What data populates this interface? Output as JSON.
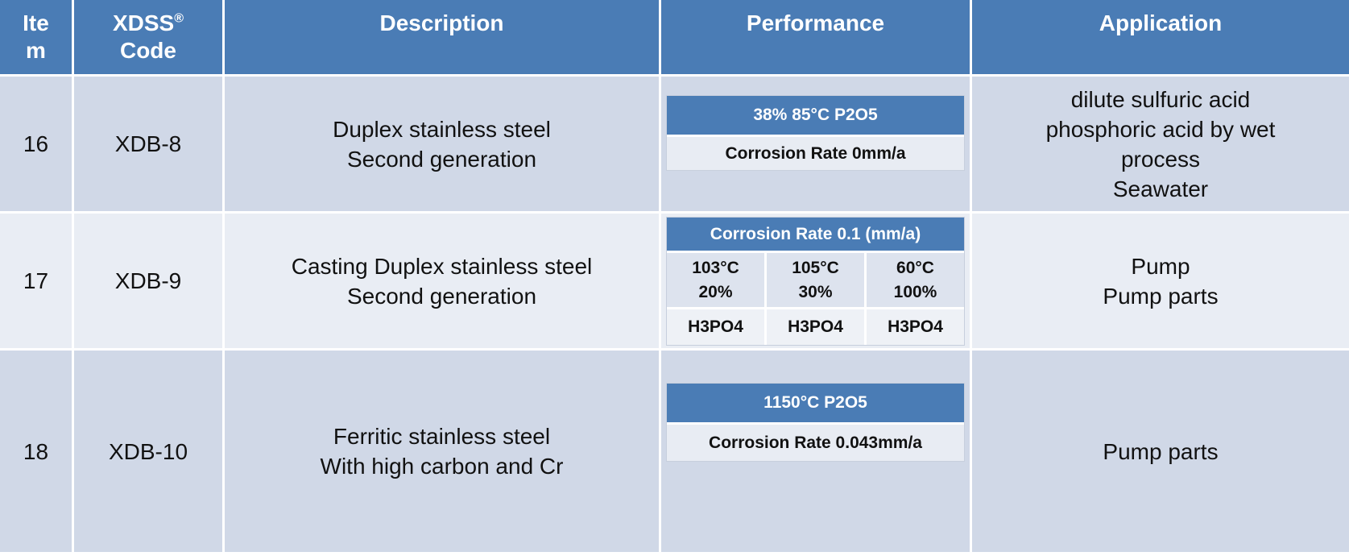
{
  "header": {
    "item": "Ite\nm",
    "code_prefix": "XDSS",
    "code_reg": "®",
    "code_suffix": "Code",
    "description": "Description",
    "performance": "Performance",
    "application": "Application"
  },
  "rows": [
    {
      "item": "16",
      "code": "XDB-8",
      "description_line1": "Duplex stainless steel",
      "description_line2": "Second generation",
      "performance": {
        "head": "38% 85°C P2O5",
        "sub": "Corrosion Rate 0mm/a"
      },
      "application": [
        "dilute sulfuric acid",
        "phosphoric acid by wet",
        "process",
        "Seawater"
      ]
    },
    {
      "item": "17",
      "code": "XDB-9",
      "description_line1": "Casting Duplex stainless steel",
      "description_line2": "Second generation",
      "performance": {
        "head": "Corrosion Rate 0.1 (mm/a)",
        "cols": [
          {
            "temp": "103°C",
            "conc": "20%",
            "acid": "H3PO4"
          },
          {
            "temp": "105°C",
            "conc": "30%",
            "acid": "H3PO4"
          },
          {
            "temp": "60°C",
            "conc": "100%",
            "acid": "H3PO4"
          }
        ]
      },
      "application": [
        "Pump",
        "Pump parts"
      ]
    },
    {
      "item": "18",
      "code": "XDB-10",
      "description_line1": "Ferritic stainless steel",
      "description_line2": "With high carbon and Cr",
      "performance": {
        "head": "1150°C P2O5",
        "sub": "Corrosion Rate 0.043mm/a"
      },
      "application": [
        "Pump parts"
      ]
    }
  ],
  "colors": {
    "header_bg": "#4a7cb5",
    "row_dark": "#d0d8e7",
    "row_light": "#e9edf4"
  }
}
